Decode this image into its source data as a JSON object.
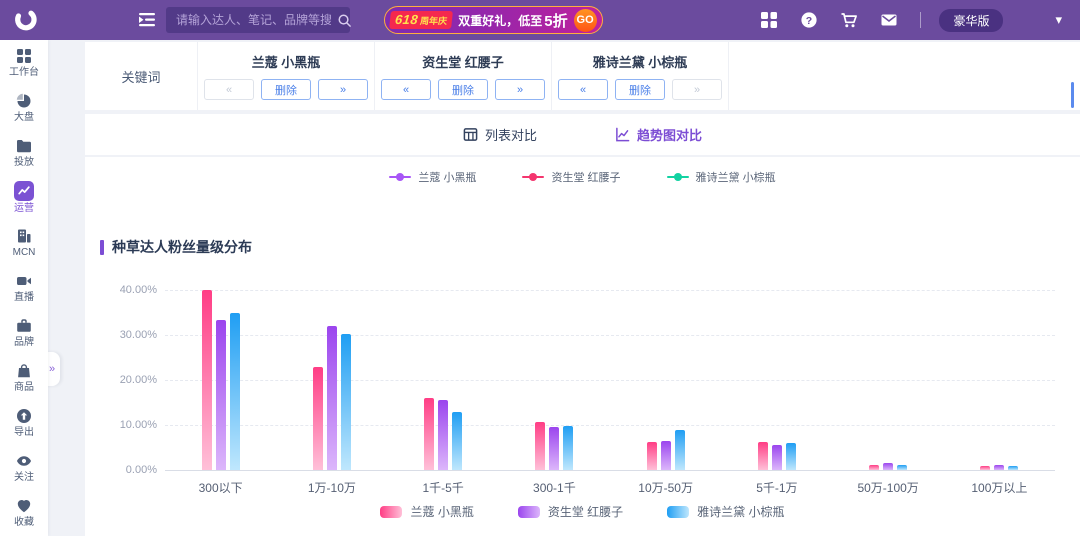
{
  "topbar": {
    "search_placeholder": "请输入达人、笔记、品牌等搜索",
    "promo": {
      "badge_main": "618",
      "badge_sub": "周年庆",
      "text": "双重好礼，低至",
      "highlight": "5折",
      "cta": "GO"
    },
    "plan_badge": "豪华版",
    "caret": "▾"
  },
  "sidebar": {
    "expander": "»",
    "items": [
      {
        "label": "工作台",
        "icon": "grid-icon",
        "active": false
      },
      {
        "label": "大盘",
        "icon": "pie-icon",
        "active": false
      },
      {
        "label": "投放",
        "icon": "folder-icon",
        "active": false
      },
      {
        "label": "运营",
        "icon": "trend-board-icon",
        "active": true
      },
      {
        "label": "MCN",
        "icon": "building-icon",
        "active": false
      },
      {
        "label": "直播",
        "icon": "video-icon",
        "active": false
      },
      {
        "label": "品牌",
        "icon": "briefcase-icon",
        "active": false
      },
      {
        "label": "商品",
        "icon": "shopping-bag-icon",
        "active": false
      },
      {
        "label": "导出",
        "icon": "export-icon",
        "active": false
      },
      {
        "label": "关注",
        "icon": "eye-icon",
        "active": false
      },
      {
        "label": "收藏",
        "icon": "heart-icon",
        "active": false
      }
    ]
  },
  "keywords": {
    "label": "关键词",
    "prev_label": "«",
    "next_label": "»",
    "delete_label": "删除",
    "groups": [
      {
        "name": "兰蔻 小黑瓶",
        "prev_enabled": false,
        "next_enabled": true
      },
      {
        "name": "资生堂 红腰子",
        "prev_enabled": true,
        "next_enabled": true
      },
      {
        "name": "雅诗兰黛 小棕瓶",
        "prev_enabled": true,
        "next_enabled": false
      }
    ]
  },
  "tabs": [
    {
      "label": "列表对比",
      "icon": "table-icon",
      "active": false
    },
    {
      "label": "趋势图对比",
      "icon": "trend-line-icon",
      "active": true
    }
  ],
  "trend_legend": [
    {
      "label": "兰蔻 小黑瓶",
      "color": "#a856f7"
    },
    {
      "label": "资生堂 红腰子",
      "color": "#f4356e"
    },
    {
      "label": "雅诗兰黛 小棕瓶",
      "color": "#12d2a2"
    }
  ],
  "chart_title": "种草达人粉丝量级分布",
  "chart_data": {
    "type": "bar",
    "title": "种草达人粉丝量级分布",
    "categories": [
      "300以下",
      "1万-10万",
      "1千-5千",
      "300-1千",
      "10万-50万",
      "5千-1万",
      "50万-100万",
      "100万以上"
    ],
    "series": [
      {
        "name": "兰蔻 小黑瓶",
        "color_top": "#ff3d85",
        "color_bottom": "#ffc0d8",
        "values": [
          40.0,
          23.0,
          16.0,
          10.7,
          6.3,
          6.3,
          1.2,
          1.0
        ]
      },
      {
        "name": "资生堂 红腰子",
        "color_top": "#9b45ee",
        "color_bottom": "#dcb6fb",
        "values": [
          33.3,
          32.0,
          15.5,
          9.5,
          6.5,
          5.5,
          1.6,
          1.1
        ]
      },
      {
        "name": "雅诗兰黛 小棕瓶",
        "color_top": "#1f9ef3",
        "color_bottom": "#bfe7fd",
        "values": [
          35.0,
          30.3,
          13.0,
          9.8,
          8.8,
          6.0,
          1.2,
          0.8
        ]
      }
    ],
    "xlabel": "",
    "ylabel": "",
    "ylim": [
      0,
      40
    ],
    "yticks": [
      {
        "value": 40,
        "label": "40.00%"
      },
      {
        "value": 30,
        "label": "30.00%"
      },
      {
        "value": 20,
        "label": "20.00%"
      },
      {
        "value": 10,
        "label": "10.00%"
      },
      {
        "value": 0,
        "label": "0.00%"
      }
    ],
    "grid": "horizontal-dashed",
    "legend_position": "bottom"
  }
}
